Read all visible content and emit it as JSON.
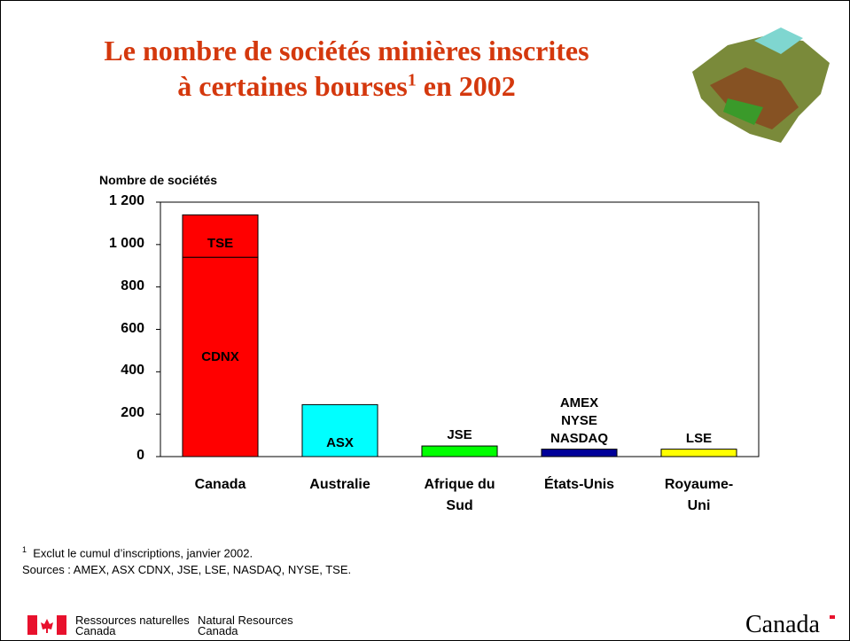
{
  "title": "Le nombre de sociétés minières inscrites",
  "title_line2": "à certaines bourses",
  "title_note_mark": "1",
  "title_end": " en 2002",
  "chart_data": {
    "type": "bar",
    "stacked": true,
    "y_label": "Nombre de sociétés",
    "categories": [
      "Canada",
      "Australie",
      "Afrique du Sud",
      "États-Unis",
      "Royaume-Uni"
    ],
    "series": [
      {
        "name": "CDNX",
        "color": "#ff0000",
        "values": [
          940,
          null,
          null,
          null,
          null
        ]
      },
      {
        "name": "TSE",
        "color": "#ff0000",
        "values": [
          200,
          null,
          null,
          null,
          null
        ]
      },
      {
        "name": "ASX",
        "color": "#00ffff",
        "values": [
          null,
          245,
          null,
          null,
          null
        ]
      },
      {
        "name": "JSE",
        "color": "#00ff00",
        "values": [
          null,
          null,
          50,
          null,
          null
        ]
      },
      {
        "name": "AMEX\nNYSE\nNASDAQ",
        "color": "#000099",
        "values": [
          null,
          null,
          null,
          35,
          null
        ]
      },
      {
        "name": "LSE",
        "color": "#ffff00",
        "values": [
          null,
          null,
          null,
          null,
          35
        ]
      }
    ],
    "ylim": [
      0,
      1200
    ],
    "yticks": [
      0,
      200,
      400,
      600,
      800,
      {
        "value": 1000,
        "label": "1 000"
      },
      {
        "value": 1200,
        "label": "1 200"
      }
    ],
    "grid": false
  },
  "footnote_mark": "1",
  "footnote": "Exclut le cumul d’inscriptions, janvier 2002.",
  "sources": "Sources : AMEX, ASX CDNX, JSE, LSE, NASDAQ, NYSE, TSE.",
  "footer": {
    "fr_line1": "Ressources naturelles",
    "fr_line2": "Canada",
    "en_line1": "Natural Resources",
    "en_line2": "Canada",
    "wordmark": "Canada"
  }
}
